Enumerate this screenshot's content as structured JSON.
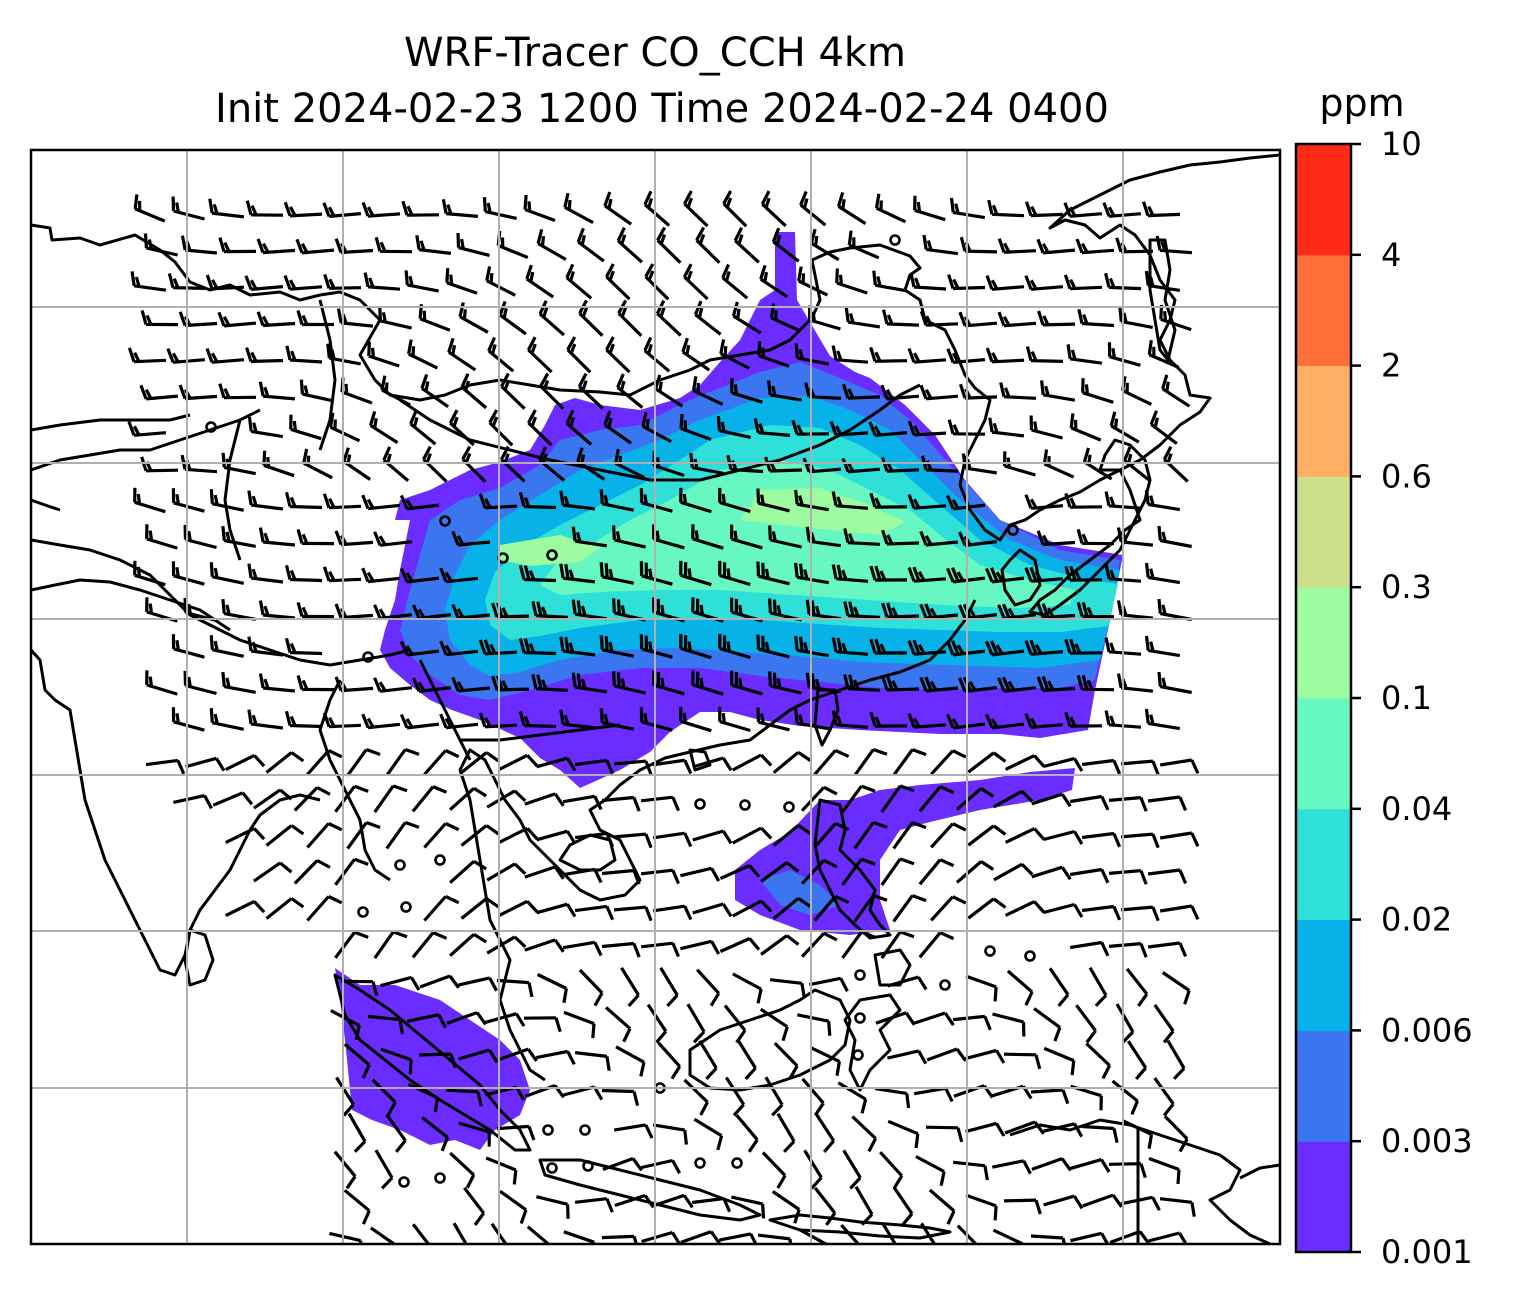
{
  "figure": {
    "title_line1": "WRF-Tracer CO_CCH 4km",
    "title_line2": "Init 2024-02-23 1200 Time 2024-02-24 0400"
  },
  "colorbar": {
    "unit": "ppm",
    "levels": [
      "0.001",
      "0.003",
      "0.006",
      "0.02",
      "0.04",
      "0.1",
      "0.3",
      "0.6",
      "2",
      "4",
      "10"
    ],
    "colors": [
      "#6a2cff",
      "#3a76f0",
      "#07b2e8",
      "#2fe0d8",
      "#66f7c2",
      "#9dfba0",
      "#cfe08a",
      "#fdb063",
      "#ff7038",
      "#ff2a18"
    ]
  },
  "map": {
    "gridlines": true,
    "grid_color": "#b0b0b0",
    "coastline_color": "#000000",
    "barb_color": "#000000"
  }
}
